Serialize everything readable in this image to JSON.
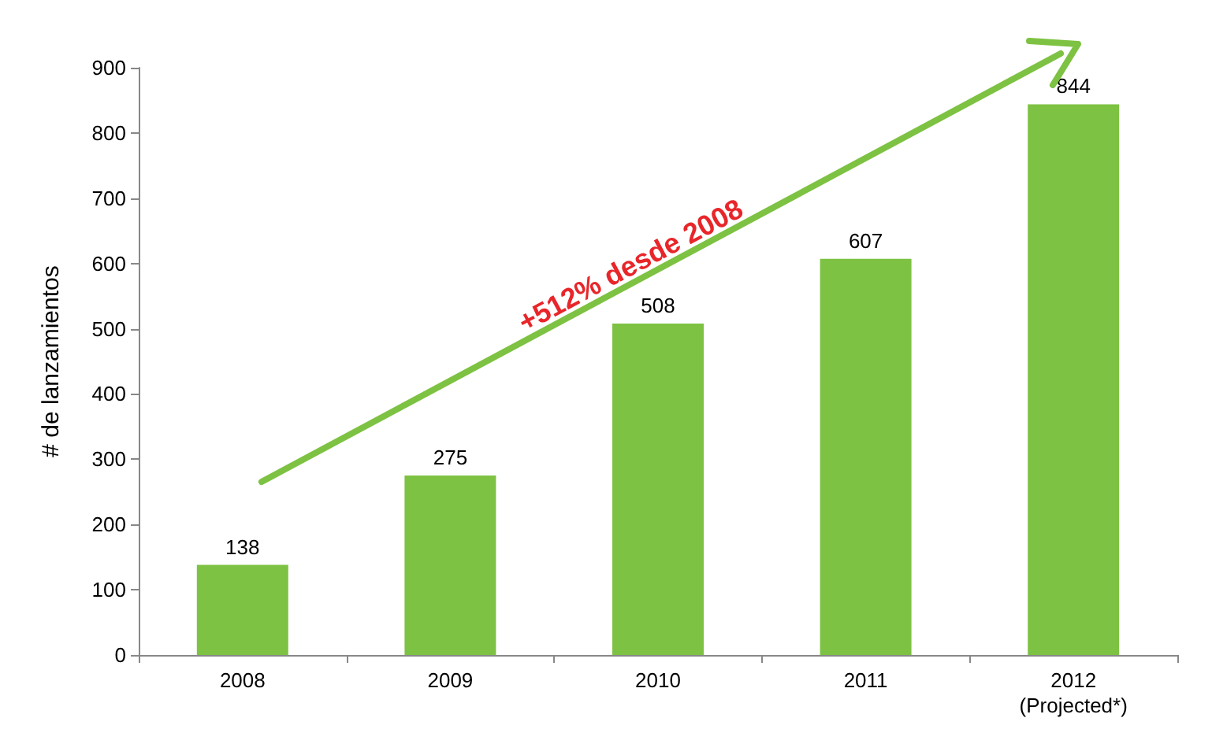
{
  "chart_data": {
    "type": "bar",
    "ylabel": "# de lanzamientos",
    "categories": [
      "2008",
      "2009",
      "2010",
      "2011",
      "2012\n(Projected*)"
    ],
    "values": [
      138,
      275,
      508,
      607,
      844
    ],
    "color": "#7dc242",
    "ylim": [
      0,
      900
    ],
    "yticks": [
      0,
      100,
      200,
      300,
      400,
      500,
      600,
      700,
      800,
      900
    ],
    "data_labels": true,
    "grid": false,
    "annotations": [
      "+512% desde 2008"
    ]
  }
}
